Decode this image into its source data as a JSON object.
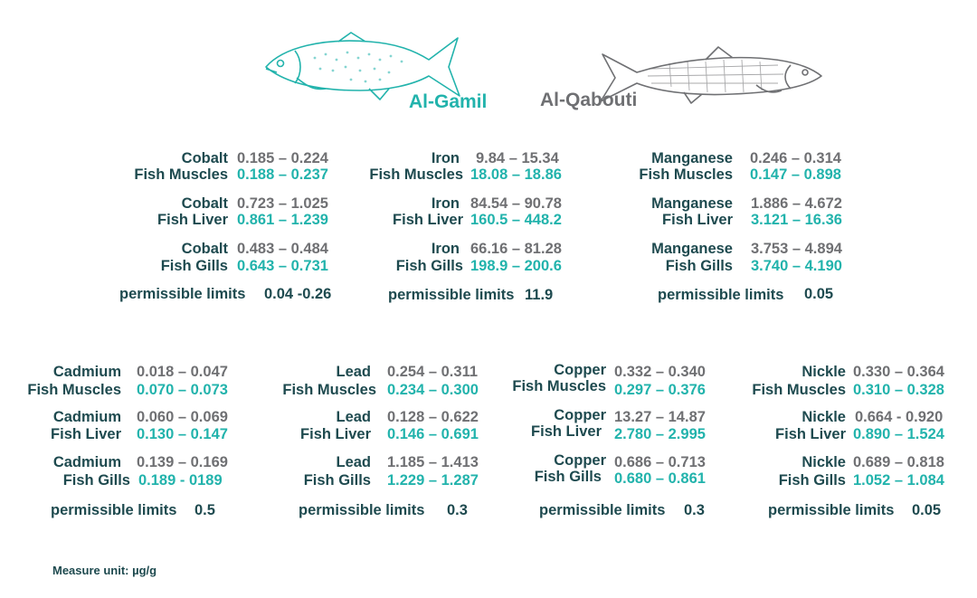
{
  "legend": {
    "al_gamil": {
      "name": "Al-Gamil",
      "color": "#22b3ac"
    },
    "al_qabouti": {
      "name": "Al-Qabouti",
      "color": "#6f7073"
    }
  },
  "label_color": "#1e4a4f",
  "unit_label": "Measure unit: µg/g",
  "metals": [
    {
      "metal": "Cobalt",
      "rows": [
        {
          "part": "Fish Muscles",
          "al_qabouti": "0.185 – 0.224",
          "al_gamil": "0.188 – 0.237"
        },
        {
          "part": "Fish Liver",
          "al_qabouti": "0.723 – 1.025",
          "al_gamil": "0.861 – 1.239"
        },
        {
          "part": "Fish Gills",
          "al_qabouti": "0.483 – 0.484",
          "al_gamil": "0.643 – 0.731"
        }
      ],
      "permissible": {
        "label": "permissible limits",
        "value": "0.04 -0.26"
      }
    },
    {
      "metal": "Iron",
      "rows": [
        {
          "part": "Fish Muscles",
          "al_qabouti": "9.84 – 15.34",
          "al_gamil": "18.08 – 18.86"
        },
        {
          "part": "Fish Liver",
          "al_qabouti": "84.54 – 90.78",
          "al_gamil": "160.5 – 448.2"
        },
        {
          "part": "Fish Gills",
          "al_qabouti": "66.16 – 81.28",
          "al_gamil": "198.9 – 200.6"
        }
      ],
      "permissible": {
        "label": "permissible limits",
        "value": "11.9"
      }
    },
    {
      "metal": "Manganese",
      "rows": [
        {
          "part": "Fish Muscles",
          "al_qabouti": "0.246 – 0.314",
          "al_gamil": "0.147 – 0.898"
        },
        {
          "part": "Fish Liver",
          "al_qabouti": "1.886 – 4.672",
          "al_gamil": "3.121 – 16.36"
        },
        {
          "part": "Fish Gills",
          "al_qabouti": "3.753 – 4.894",
          "al_gamil": "3.740 – 4.190"
        }
      ],
      "permissible": {
        "label": "permissible limits",
        "value": "0.05"
      }
    },
    {
      "metal": "Cadmium",
      "rows": [
        {
          "part": "Fish Muscles",
          "al_qabouti": "0.018 – 0.047",
          "al_gamil": "0.070 – 0.073"
        },
        {
          "part": "Fish Liver",
          "al_qabouti": "0.060 – 0.069",
          "al_gamil": "0.130 – 0.147"
        },
        {
          "part": "Fish Gills",
          "al_qabouti": "0.139 – 0.169",
          "al_gamil": "0.189 - 0189"
        }
      ],
      "permissible": {
        "label": "permissible limits",
        "value": "0.5"
      }
    },
    {
      "metal": "Lead",
      "rows": [
        {
          "part": "Fish Muscles",
          "al_qabouti": "0.254 – 0.311",
          "al_gamil": "0.234 – 0.300"
        },
        {
          "part": "Fish Liver",
          "al_qabouti": "0.128 – 0.622",
          "al_gamil": "0.146 – 0.691"
        },
        {
          "part": "Fish Gills",
          "al_qabouti": "1.185 – 1.413",
          "al_gamil": "1.229 – 1.287"
        }
      ],
      "permissible": {
        "label": "permissible limits",
        "value": "0.3"
      }
    },
    {
      "metal": "Copper",
      "rows": [
        {
          "part": "Fish Muscles",
          "al_qabouti": "0.332 – 0.340",
          "al_gamil": "0.297 – 0.376"
        },
        {
          "part": "Fish Liver",
          "al_qabouti": "13.27 – 14.87",
          "al_gamil": "2.780 – 2.995"
        },
        {
          "part": "Fish Gills",
          "al_qabouti": "0.686 – 0.713",
          "al_gamil": "0.680 – 0.861"
        }
      ],
      "permissible": {
        "label": "permissible limits",
        "value": "0.3"
      }
    },
    {
      "metal": "Nickle",
      "rows": [
        {
          "part": "Fish Muscles",
          "al_qabouti": "0.330 – 0.364",
          "al_gamil": "0.310 – 0.328"
        },
        {
          "part": "Fish Liver",
          "al_qabouti": "0.664 - 0.920",
          "al_gamil": "0.890 – 1.524"
        },
        {
          "part": "Fish Gills",
          "al_qabouti": "0.689 – 0.818",
          "al_gamil": "1.052 – 1.084"
        }
      ],
      "permissible": {
        "label": "permissible limits",
        "value": "0.05"
      }
    }
  ]
}
